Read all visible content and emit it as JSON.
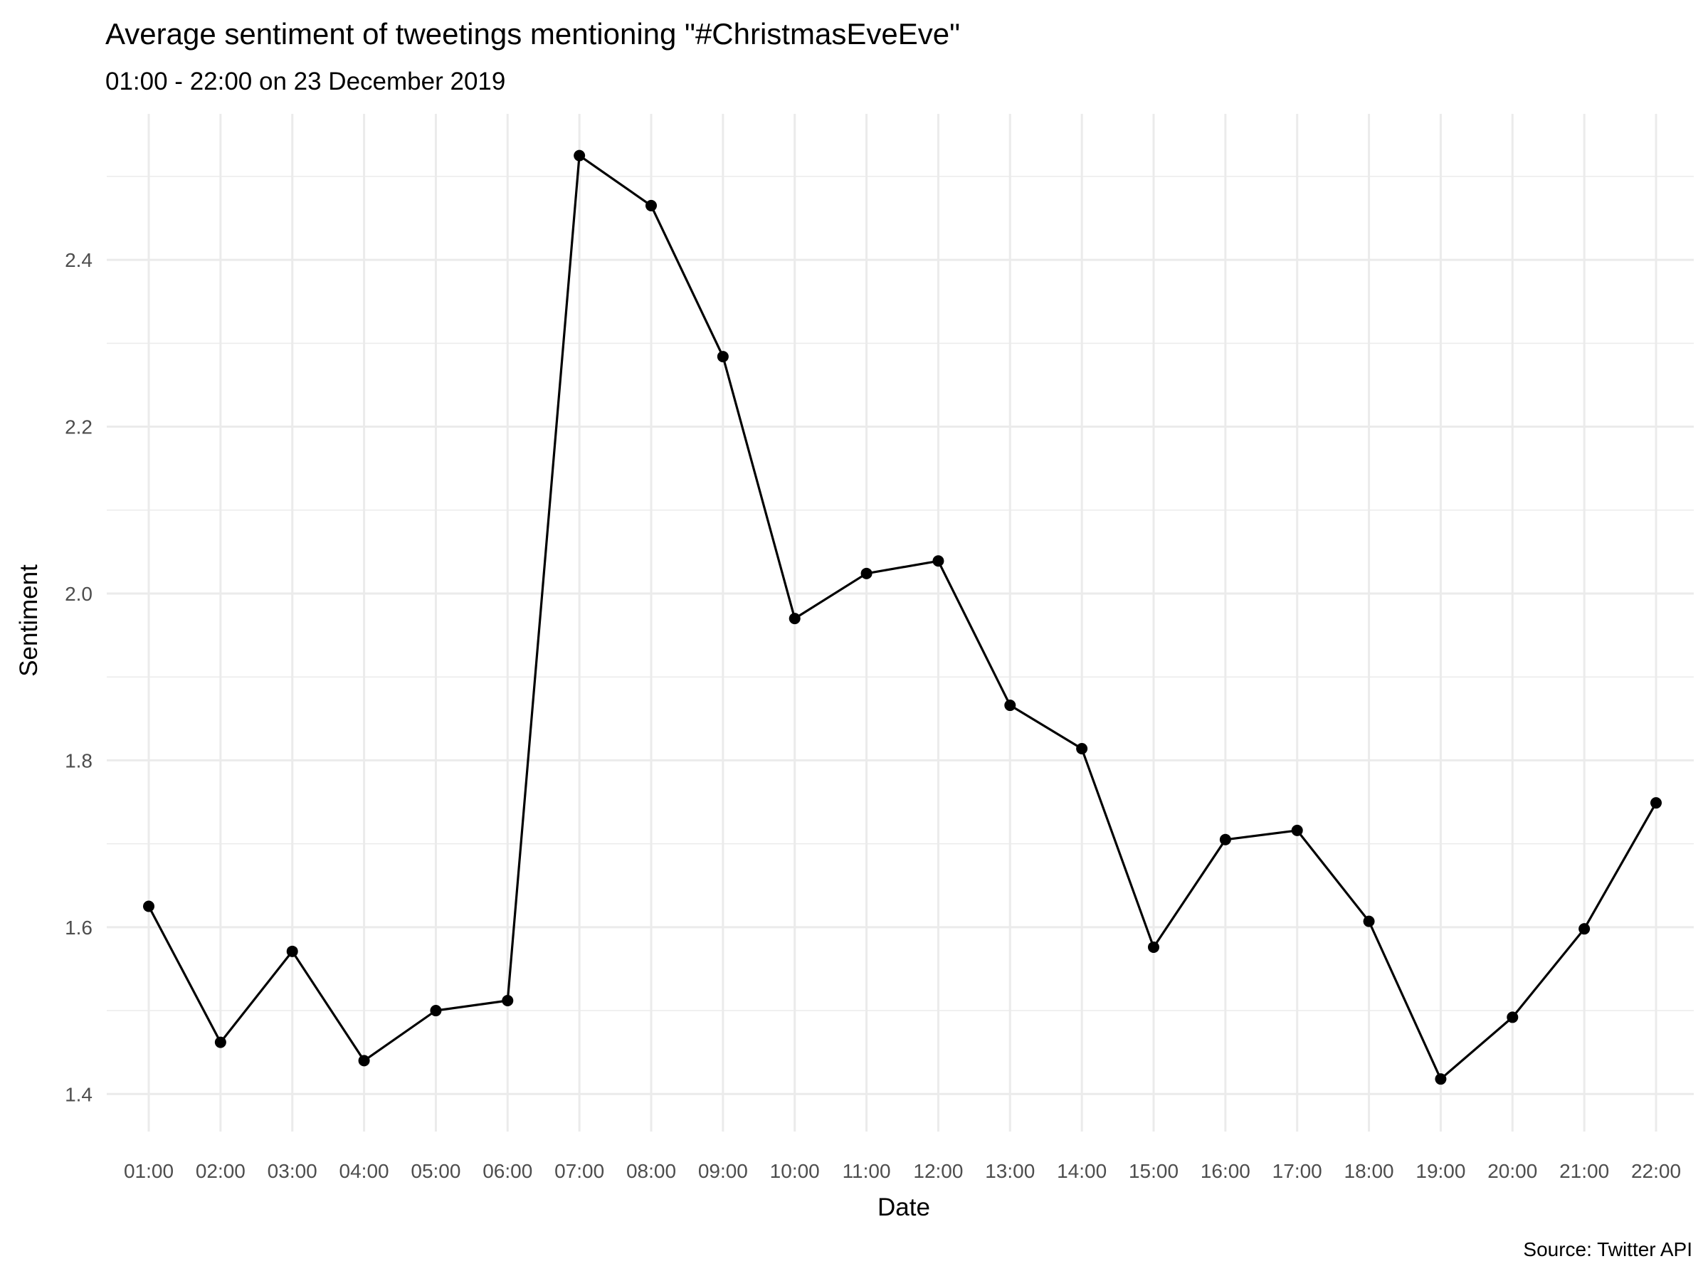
{
  "chart_data": {
    "type": "line",
    "title": "Average sentiment of tweetings mentioning \"#ChristmasEveEve\"",
    "subtitle": "01:00 - 22:00 on 23 December 2019",
    "xlabel": "Date",
    "ylabel": "Sentiment",
    "caption": "Source: Twitter API",
    "x": [
      "01:00",
      "02:00",
      "03:00",
      "04:00",
      "05:00",
      "06:00",
      "07:00",
      "08:00",
      "09:00",
      "10:00",
      "11:00",
      "12:00",
      "13:00",
      "14:00",
      "15:00",
      "16:00",
      "17:00",
      "18:00",
      "19:00",
      "20:00",
      "21:00",
      "22:00"
    ],
    "values": [
      1.625,
      1.462,
      1.571,
      1.44,
      1.5,
      1.512,
      2.525,
      2.465,
      2.284,
      1.97,
      2.024,
      2.039,
      1.866,
      1.814,
      1.576,
      1.705,
      1.716,
      1.607,
      1.418,
      1.492,
      1.598,
      1.749
    ],
    "ylim": [
      1.355,
      2.575
    ],
    "yticks": [
      "1.4",
      "1.6",
      "1.8",
      "2.0",
      "2.2",
      "2.4"
    ],
    "grid": true,
    "legend": "none",
    "colors": {
      "line": "#000000",
      "grid": "#ebebeb",
      "background": "#ffffff"
    }
  }
}
